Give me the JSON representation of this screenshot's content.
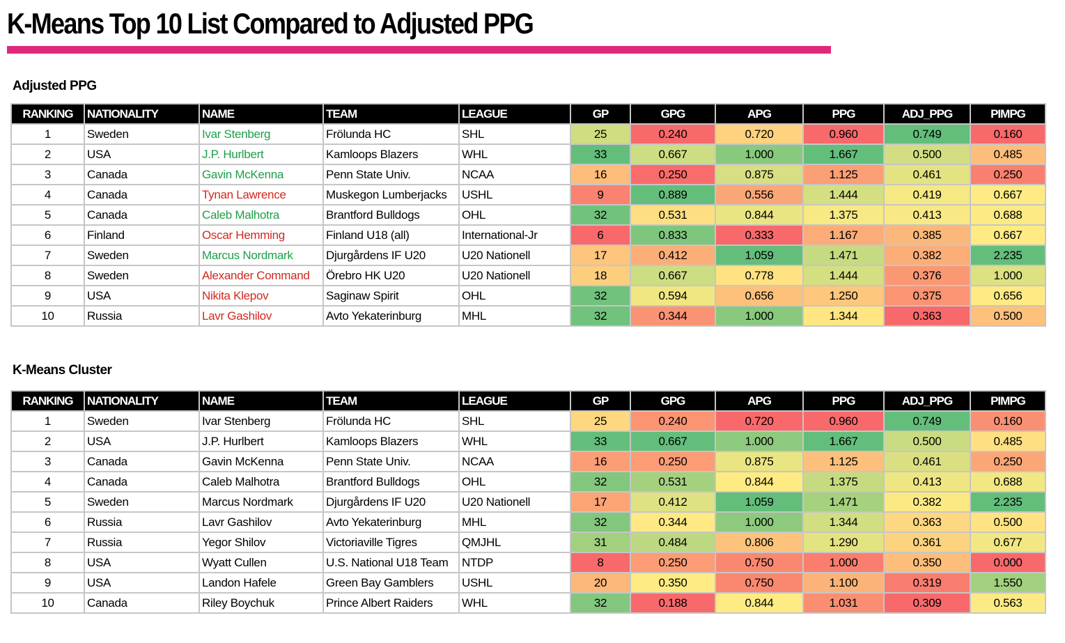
{
  "header": {
    "title": "K-Means Top 10 List Compared to Adjusted PPG"
  },
  "tables": [
    {
      "title": "Adjusted PPG",
      "columns": [
        "RANKING",
        "NATIONALITY",
        "NAME",
        "TEAM",
        "LEAGUE",
        "GP",
        "GPG",
        "APG",
        "PPG",
        "ADJ_PPG",
        "PIMPG"
      ],
      "name_colors": [
        "#1e9e48",
        "#1e9e48",
        "#1e9e48",
        "#d0281e",
        "#1e9e48",
        "#d0281e",
        "#1e9e48",
        "#d0281e",
        "#d0281e",
        "#d0281e"
      ],
      "rows": [
        [
          1,
          "Sweden",
          "Ivar Stenberg",
          "Frölunda HC",
          "SHL",
          25,
          "0.240",
          "0.720",
          "0.960",
          "0.749",
          "0.160"
        ],
        [
          2,
          "USA",
          "J.P. Hurlbert",
          "Kamloops Blazers",
          "WHL",
          33,
          "0.667",
          "1.000",
          "1.667",
          "0.500",
          "0.485"
        ],
        [
          3,
          "Canada",
          "Gavin McKenna",
          "Penn State Univ.",
          "NCAA",
          16,
          "0.250",
          "0.875",
          "1.125",
          "0.461",
          "0.250"
        ],
        [
          4,
          "Canada",
          "Tynan Lawrence",
          "Muskegon Lumberjacks",
          "USHL",
          9,
          "0.889",
          "0.556",
          "1.444",
          "0.419",
          "0.667"
        ],
        [
          5,
          "Canada",
          "Caleb Malhotra",
          "Brantford Bulldogs",
          "OHL",
          32,
          "0.531",
          "0.844",
          "1.375",
          "0.413",
          "0.688"
        ],
        [
          6,
          "Finland",
          "Oscar Hemming",
          "Finland U18 (all)",
          "International-Jr",
          6,
          "0.833",
          "0.333",
          "1.167",
          "0.385",
          "0.667"
        ],
        [
          7,
          "Sweden",
          "Marcus Nordmark",
          "Djurgårdens IF U20",
          "U20 Nationell",
          17,
          "0.412",
          "1.059",
          "1.471",
          "0.382",
          "2.235"
        ],
        [
          8,
          "Sweden",
          "Alexander Command",
          "Örebro HK U20",
          "U20 Nationell",
          18,
          "0.667",
          "0.778",
          "1.444",
          "0.376",
          "1.000"
        ],
        [
          9,
          "USA",
          "Nikita Klepov",
          "Saginaw Spirit",
          "OHL",
          32,
          "0.594",
          "0.656",
          "1.250",
          "0.375",
          "0.656"
        ],
        [
          10,
          "Russia",
          "Lavr Gashilov",
          "Avto Yekaterinburg",
          "MHL",
          32,
          "0.344",
          "1.000",
          "1.344",
          "0.363",
          "0.500"
        ]
      ]
    },
    {
      "title": "K-Means Cluster",
      "columns": [
        "RANKING",
        "NATIONALITY",
        "NAME",
        "TEAM",
        "LEAGUE",
        "GP",
        "GPG",
        "APG",
        "PPG",
        "ADJ_PPG",
        "PIMPG"
      ],
      "rows": [
        [
          1,
          "Sweden",
          "Ivar Stenberg",
          "Frölunda HC",
          "SHL",
          25,
          "0.240",
          "0.720",
          "0.960",
          "0.749",
          "0.160"
        ],
        [
          2,
          "USA",
          "J.P. Hurlbert",
          "Kamloops Blazers",
          "WHL",
          33,
          "0.667",
          "1.000",
          "1.667",
          "0.500",
          "0.485"
        ],
        [
          3,
          "Canada",
          "Gavin McKenna",
          "Penn State Univ.",
          "NCAA",
          16,
          "0.250",
          "0.875",
          "1.125",
          "0.461",
          "0.250"
        ],
        [
          4,
          "Canada",
          "Caleb Malhotra",
          "Brantford Bulldogs",
          "OHL",
          32,
          "0.531",
          "0.844",
          "1.375",
          "0.413",
          "0.688"
        ],
        [
          5,
          "Sweden",
          "Marcus Nordmark",
          "Djurgårdens IF U20",
          "U20 Nationell",
          17,
          "0.412",
          "1.059",
          "1.471",
          "0.382",
          "2.235"
        ],
        [
          6,
          "Russia",
          "Lavr Gashilov",
          "Avto Yekaterinburg",
          "MHL",
          32,
          "0.344",
          "1.000",
          "1.344",
          "0.363",
          "0.500"
        ],
        [
          7,
          "Russia",
          "Yegor Shilov",
          "Victoriaville Tigres",
          "QMJHL",
          31,
          "0.484",
          "0.806",
          "1.290",
          "0.361",
          "0.677"
        ],
        [
          8,
          "USA",
          "Wyatt Cullen",
          "U.S. National U18 Team",
          "NTDP",
          8,
          "0.250",
          "0.750",
          "1.000",
          "0.350",
          "0.000"
        ],
        [
          9,
          "USA",
          "Landon Hafele",
          "Green Bay Gamblers",
          "USHL",
          20,
          "0.350",
          "0.750",
          "1.100",
          "0.319",
          "1.550"
        ],
        [
          10,
          "Canada",
          "Riley Boychuk",
          "Prince Albert Raiders",
          "WHL",
          32,
          "0.188",
          "0.844",
          "1.031",
          "0.309",
          "0.563"
        ]
      ]
    }
  ]
}
